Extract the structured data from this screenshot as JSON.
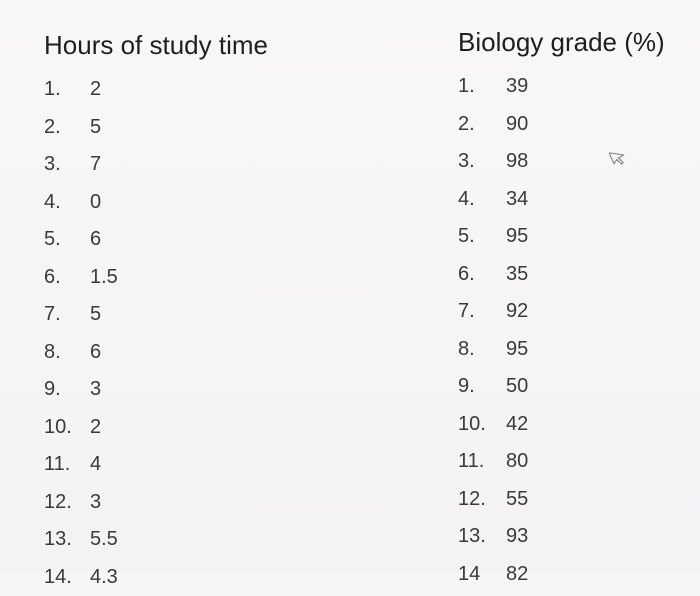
{
  "hours": {
    "heading": "Hours of study time",
    "items": [
      {
        "num": "1.",
        "value": "2"
      },
      {
        "num": "2.",
        "value": "5"
      },
      {
        "num": "3.",
        "value": "7"
      },
      {
        "num": "4.",
        "value": "0"
      },
      {
        "num": "5.",
        "value": "6"
      },
      {
        "num": "6.",
        "value": "1.5"
      },
      {
        "num": "7.",
        "value": "5"
      },
      {
        "num": "8.",
        "value": "6"
      },
      {
        "num": "9.",
        "value": "3"
      },
      {
        "num": "10.",
        "value": "2"
      },
      {
        "num": "11.",
        "value": "4"
      },
      {
        "num": "12.",
        "value": "3"
      },
      {
        "num": "13.",
        "value": "5.5"
      },
      {
        "num": "14.",
        "value": "4.3"
      }
    ]
  },
  "grades": {
    "heading": "Biology grade (%)",
    "items": [
      {
        "num": "1.",
        "value": "39"
      },
      {
        "num": "2.",
        "value": "90"
      },
      {
        "num": "3.",
        "value": "98"
      },
      {
        "num": "4.",
        "value": "34"
      },
      {
        "num": "5.",
        "value": "95"
      },
      {
        "num": "6.",
        "value": "35"
      },
      {
        "num": "7.",
        "value": "92"
      },
      {
        "num": "8.",
        "value": "95"
      },
      {
        "num": "9.",
        "value": "50"
      },
      {
        "num": "10.",
        "value": "42"
      },
      {
        "num": "11.",
        "value": "80"
      },
      {
        "num": "12.",
        "value": "55"
      },
      {
        "num": "13.",
        "value": "93"
      },
      {
        "num": "14",
        "value": "82"
      }
    ]
  },
  "cursor_icon": "pointer-cursor-icon"
}
